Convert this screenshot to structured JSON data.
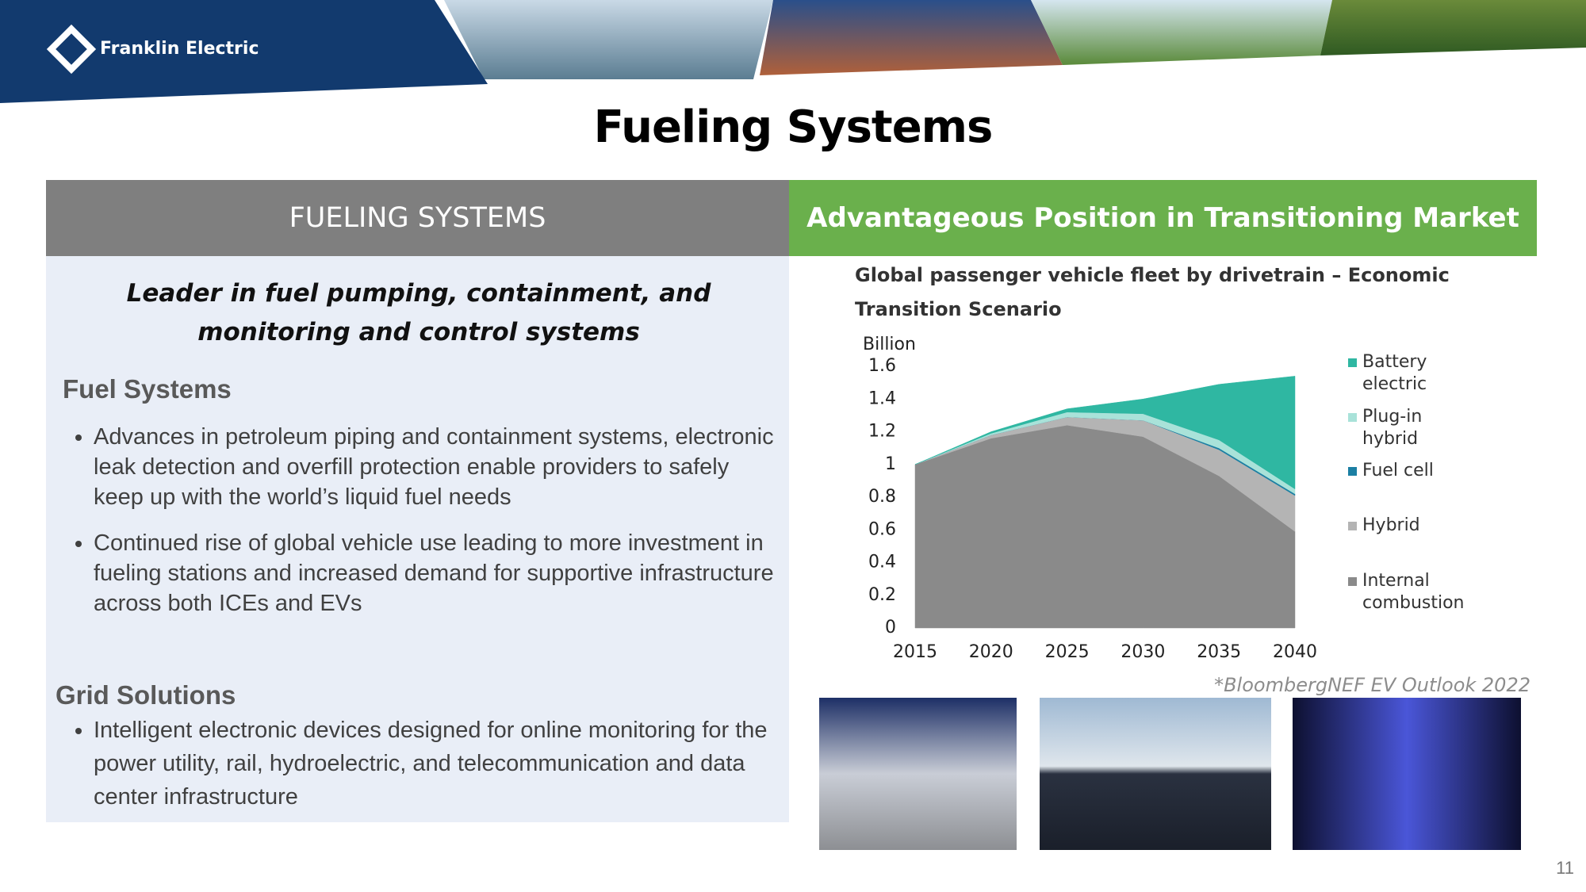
{
  "header": {
    "logo_text": "Franklin Electric"
  },
  "title": "Fueling Systems",
  "left_panel": {
    "header": "FUELING SYSTEMS",
    "tagline": "Leader in fuel pumping, containment, and monitoring and control systems",
    "sections": [
      {
        "heading": "Fuel Systems",
        "bullets": [
          "Advances in petroleum piping and containment systems, electronic leak detection and overfill protection enable providers to safely keep up with the world’s liquid fuel needs",
          "Continued rise of global vehicle use leading to more investment in fueling stations and increased demand for supportive infrastructure across both ICEs and EVs"
        ]
      },
      {
        "heading": "Grid Solutions",
        "bullets": [
          "Intelligent electronic devices designed for online monitoring for the power utility, rail, hydroelectric, and telecommunication and data center infrastructure"
        ]
      }
    ]
  },
  "right_panel": {
    "header": "Advantageous Position in Transitioning Market",
    "source": "*BloombergNEF EV Outlook 2022"
  },
  "chart_data": {
    "type": "stacked_area",
    "title": "Global passenger vehicle fleet by drivetrain – Economic Transition Scenario",
    "y_label": "Billion",
    "x": [
      2015,
      2020,
      2025,
      2030,
      2035,
      2040
    ],
    "series": [
      {
        "name": "Internal combustion",
        "color": "#8a8a8a",
        "values": [
          1.0,
          1.16,
          1.24,
          1.17,
          0.93,
          0.59
        ]
      },
      {
        "name": "Hybrid",
        "color": "#b4b4b4",
        "values": [
          0,
          0.02,
          0.05,
          0.1,
          0.16,
          0.22
        ]
      },
      {
        "name": "Fuel cell",
        "color": "#1b7fa3",
        "values": [
          0,
          0,
          0,
          0,
          0.01,
          0.01
        ]
      },
      {
        "name": "Plug-in hybrid",
        "color": "#a9e2d9",
        "values": [
          0,
          0.01,
          0.03,
          0.04,
          0.05,
          0.03
        ]
      },
      {
        "name": "Battery electric",
        "color": "#2fb7a2",
        "values": [
          0,
          0.01,
          0.02,
          0.09,
          0.34,
          0.69
        ]
      }
    ],
    "legend_order": [
      4,
      3,
      2,
      1,
      0
    ],
    "xlim": [
      2015,
      2040
    ],
    "xticks": [
      2015,
      2020,
      2025,
      2030,
      2035,
      2040
    ],
    "ylim": [
      0,
      1.6
    ],
    "yticks": [
      0,
      0.2,
      0.4,
      0.6,
      0.8,
      1,
      1.2,
      1.4,
      1.6
    ]
  },
  "page_number": "11"
}
